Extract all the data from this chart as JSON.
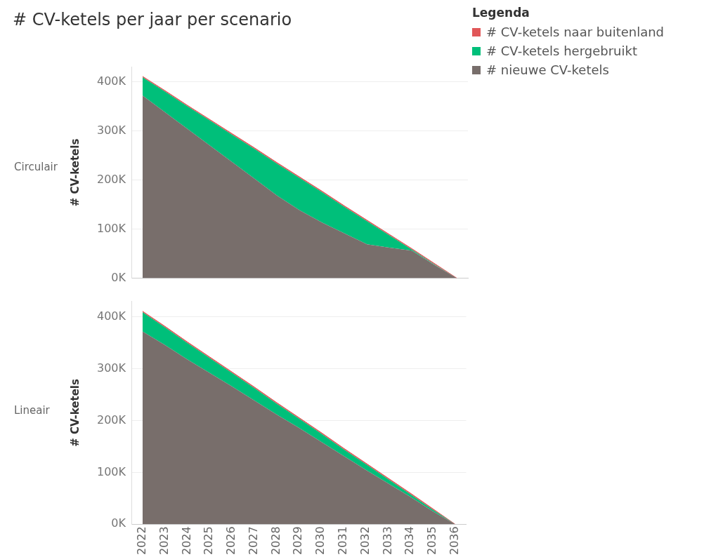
{
  "chart_data": [
    {
      "type": "area",
      "title": "# CV-ketels per jaar per scenario",
      "subtitle": "Circulair",
      "ylabel": "# CV-ketels",
      "legend_title": "Legenda",
      "legend": "right",
      "stacked": true,
      "grid": "y",
      "tick_labels": "y",
      "categories": [
        "2022",
        "2023",
        "2024",
        "2025",
        "2026",
        "2027",
        "2028",
        "2029",
        "2030",
        "2031",
        "2032",
        "2033",
        "2034",
        "2035",
        "2036"
      ],
      "ylim": [
        0,
        430000
      ],
      "yticks": [
        {
          "value": 0,
          "label": "0K"
        },
        {
          "value": 100000,
          "label": "100K"
        },
        {
          "value": 200000,
          "label": "200K"
        },
        {
          "value": 300000,
          "label": "300K"
        },
        {
          "value": 400000,
          "label": "400K"
        }
      ],
      "series": [
        {
          "name": "# nieuwe CV-ketels",
          "color": "#786e6b",
          "values": [
            372000,
            338000,
            304000,
            270000,
            236000,
            202000,
            168000,
            138000,
            113000,
            91000,
            69000,
            62000,
            56000,
            27000,
            0
          ]
        },
        {
          "name": "# CV-ketels hergebruikt",
          "color": "#00bf7a",
          "values": [
            37000,
            42000,
            46000,
            51000,
            56000,
            61000,
            65000,
            66000,
            62000,
            54000,
            47000,
            25000,
            2000,
            1000,
            0
          ]
        },
        {
          "name": "# CV-ketels naar buitenland",
          "color": "#e15759",
          "values": [
            2000,
            2000,
            2000,
            2000,
            2000,
            2000,
            2000,
            2000,
            2000,
            2000,
            2000,
            2000,
            2000,
            2000,
            0
          ]
        }
      ]
    },
    {
      "type": "area",
      "subtitle": "Lineair",
      "ylabel": "# CV-ketels",
      "stacked": true,
      "grid": "y",
      "categories": [
        "2022",
        "2023",
        "2024",
        "2025",
        "2026",
        "2027",
        "2028",
        "2029",
        "2030",
        "2031",
        "2032",
        "2033",
        "2034",
        "2035",
        "2036"
      ],
      "ylim": [
        0,
        430000
      ],
      "yticks": [
        {
          "value": 0,
          "label": "0K"
        },
        {
          "value": 100000,
          "label": "100K"
        },
        {
          "value": 200000,
          "label": "200K"
        },
        {
          "value": 300000,
          "label": "300K"
        },
        {
          "value": 400000,
          "label": "400K"
        }
      ],
      "series": [
        {
          "color": "#786e6b",
          "values": [
            372000,
            346000,
            318000,
            292000,
            266000,
            239000,
            212000,
            186000,
            159000,
            132000,
            105000,
            79000,
            53000,
            25000,
            0
          ]
        },
        {
          "color": "#00bf7a",
          "values": [
            37000,
            34000,
            32000,
            29000,
            26000,
            24000,
            21000,
            18000,
            16000,
            13000,
            11000,
            8000,
            5000,
            3000,
            0
          ]
        },
        {
          "color": "#e15759",
          "values": [
            2000,
            2000,
            2000,
            2000,
            2000,
            2000,
            2000,
            2000,
            2000,
            2000,
            2000,
            2000,
            2000,
            2000,
            0
          ]
        }
      ]
    }
  ]
}
